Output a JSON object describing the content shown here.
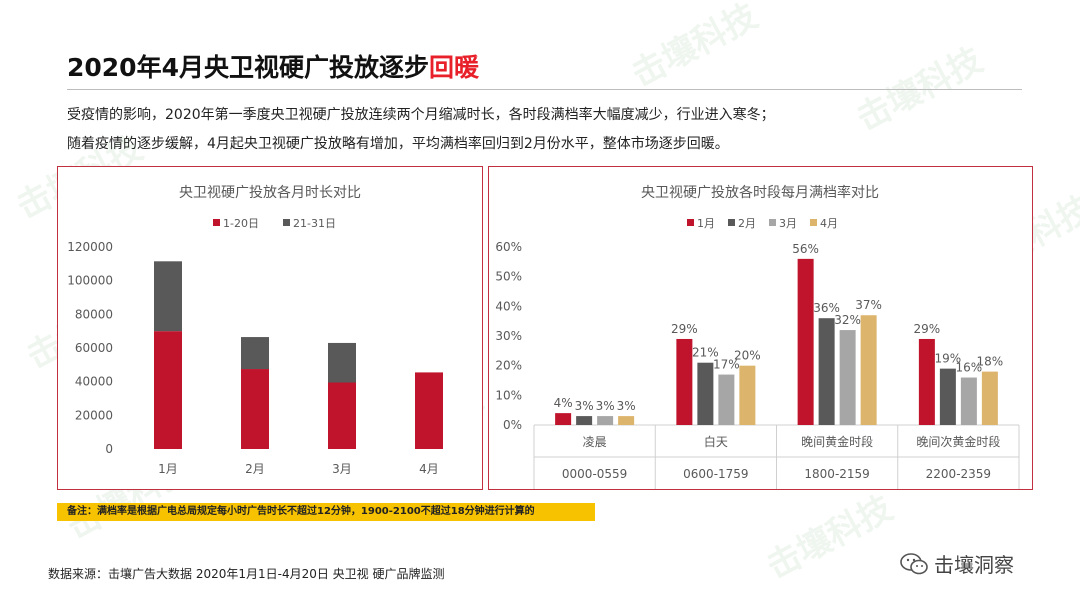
{
  "page": {
    "title_main": "2020年4月央卫视硬广投放逐步",
    "title_highlight": "回暖",
    "desc_line1": "受疫情的影响，2020年第一季度央卫视硬广投放连续两个月缩减时长，各时段满档率大幅度减少，行业进入寒冬；",
    "desc_line2": "随着疫情的逐步缓解，4月起央卫视硬广投放略有增加，平均满档率回归到2月份水平，整体市场逐步回暖。",
    "note": "备注：满档率是根据广电总局规定每小时广告时长不超过12分钟，1900-2100不超过18分钟进行计算的",
    "source": "数据来源：击壤广告大数据 2020年1月1日-4月20日 央卫视 硬广品牌监测",
    "brand": "击壤洞察",
    "watermark": "击壤科技"
  },
  "chart_data": [
    {
      "type": "bar",
      "stacked": true,
      "title": "央卫视硬广投放各月时长对比",
      "categories": [
        "1月",
        "2月",
        "3月",
        "4月"
      ],
      "series": [
        {
          "name": "1-20日",
          "color": "#c0132c",
          "values": [
            70000,
            47500,
            39500,
            45500
          ]
        },
        {
          "name": "21-31日",
          "color": "#595959",
          "values": [
            41500,
            19000,
            23500,
            0
          ]
        }
      ],
      "ylim": [
        0,
        120000
      ],
      "yticks": [
        "0",
        "20000",
        "40000",
        "60000",
        "80000",
        "100000",
        "120000"
      ],
      "legend": "top"
    },
    {
      "type": "bar",
      "title": "央卫视硬广投放各时段每月满档率对比",
      "categories": [
        "凌晨",
        "白天",
        "晚间黄金时段",
        "晚间次黄金时段"
      ],
      "sub_categories": [
        "0000-0559",
        "0600-1759",
        "1800-2159",
        "2200-2359"
      ],
      "series": [
        {
          "name": "1月",
          "color": "#c0132c",
          "values": [
            4,
            29,
            56,
            29
          ]
        },
        {
          "name": "2月",
          "color": "#595959",
          "values": [
            3,
            21,
            36,
            19
          ]
        },
        {
          "name": "3月",
          "color": "#a6a6a6",
          "values": [
            3,
            17,
            32,
            16
          ]
        },
        {
          "name": "4月",
          "color": "#dcb46c",
          "values": [
            3,
            20,
            37,
            18
          ]
        }
      ],
      "ylim": [
        0,
        60
      ],
      "yticks": [
        "0%",
        "10%",
        "20%",
        "30%",
        "40%",
        "50%",
        "60%"
      ],
      "legend": "top"
    }
  ]
}
